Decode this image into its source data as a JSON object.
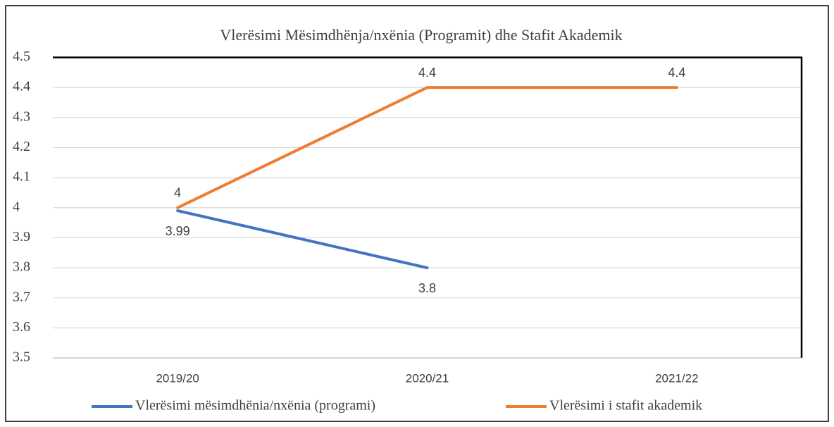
{
  "chart_data": {
    "type": "line",
    "title": "Vlerësimi Mësimdhënja/nxënia (Programit) dhe Stafit Akademik",
    "categories": [
      "2019/20",
      "2020/21",
      "2021/22"
    ],
    "series": [
      {
        "name": "Vlerësimi mësimdhënia/nxënia (programi)",
        "color": "#4472c4",
        "values": [
          3.99,
          3.8,
          null
        ]
      },
      {
        "name": "Vlerësimi i stafit akademik",
        "color": "#ed7d31",
        "values": [
          4,
          4.4,
          4.4
        ]
      }
    ],
    "ylim": [
      3.5,
      4.5
    ],
    "yticks": [
      3.5,
      3.6,
      3.7,
      3.8,
      3.9,
      4,
      4.1,
      4.2,
      4.3,
      4.4,
      4.5
    ],
    "grid": true,
    "legend": "bottom"
  }
}
